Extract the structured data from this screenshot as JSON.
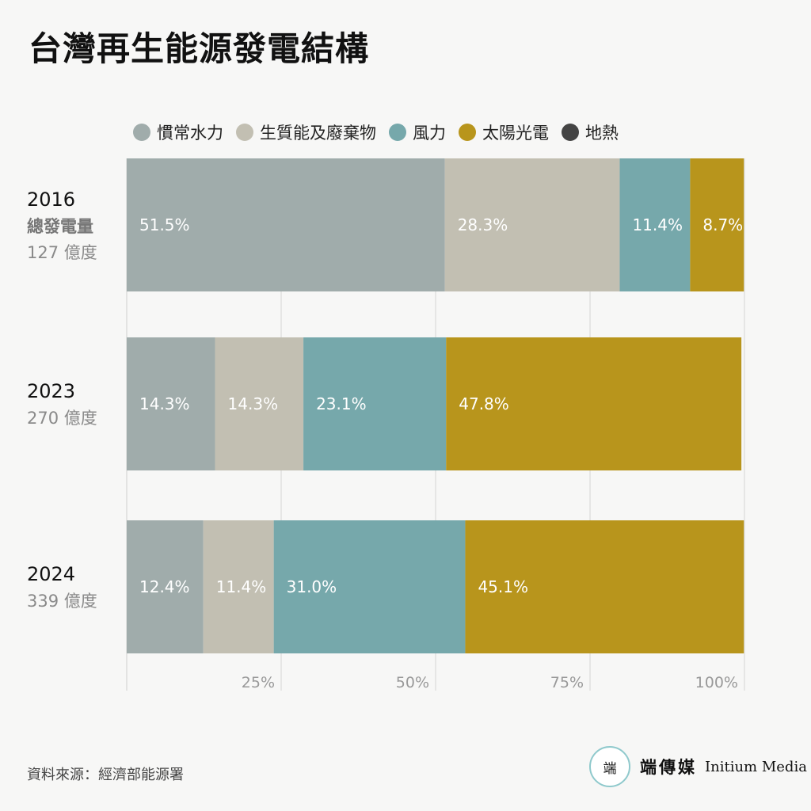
{
  "title": "台灣再生能源發電結構",
  "source": "資料來源：經濟部能源署",
  "brand": {
    "logo_text": "端",
    "name_zh": "端傳媒",
    "name_en": "Initium Media"
  },
  "chart_data": {
    "type": "bar",
    "orientation": "horizontal",
    "stacked": true,
    "title": "台灣再生能源發電結構",
    "categories": [
      "2016",
      "2023",
      "2024"
    ],
    "category_subtitles": [
      [
        "總發電量",
        "127 億度"
      ],
      [
        "270 億度"
      ],
      [
        "339 億度"
      ]
    ],
    "series": [
      {
        "name": "慣常水力",
        "color": "#a0acab",
        "values": [
          51.5,
          14.3,
          12.4
        ],
        "labels": [
          "51.5%",
          "14.3%",
          "12.4%"
        ]
      },
      {
        "name": "生質能及廢棄物",
        "color": "#c2bfb2",
        "values": [
          28.3,
          14.3,
          11.4
        ],
        "labels": [
          "28.3%",
          "14.3%",
          "11.4%"
        ]
      },
      {
        "name": "風力",
        "color": "#76a8ab",
        "values": [
          11.4,
          23.1,
          31.0
        ],
        "labels": [
          "11.4%",
          "23.1%",
          "31.0%"
        ]
      },
      {
        "name": "太陽光電",
        "color": "#b8951c",
        "values": [
          8.7,
          47.8,
          45.1
        ],
        "labels": [
          "8.7%",
          "47.8%",
          "45.1%"
        ]
      },
      {
        "name": "地熱",
        "color": "#444444",
        "values": [
          0,
          0,
          0
        ],
        "labels": [
          "",
          "",
          ""
        ]
      }
    ],
    "xlim": [
      0,
      100
    ],
    "xticks": [
      25,
      50,
      75,
      100
    ],
    "xtick_labels": [
      "25%",
      "50%",
      "75%",
      "100%"
    ],
    "grid": true,
    "legend_position": "top"
  }
}
